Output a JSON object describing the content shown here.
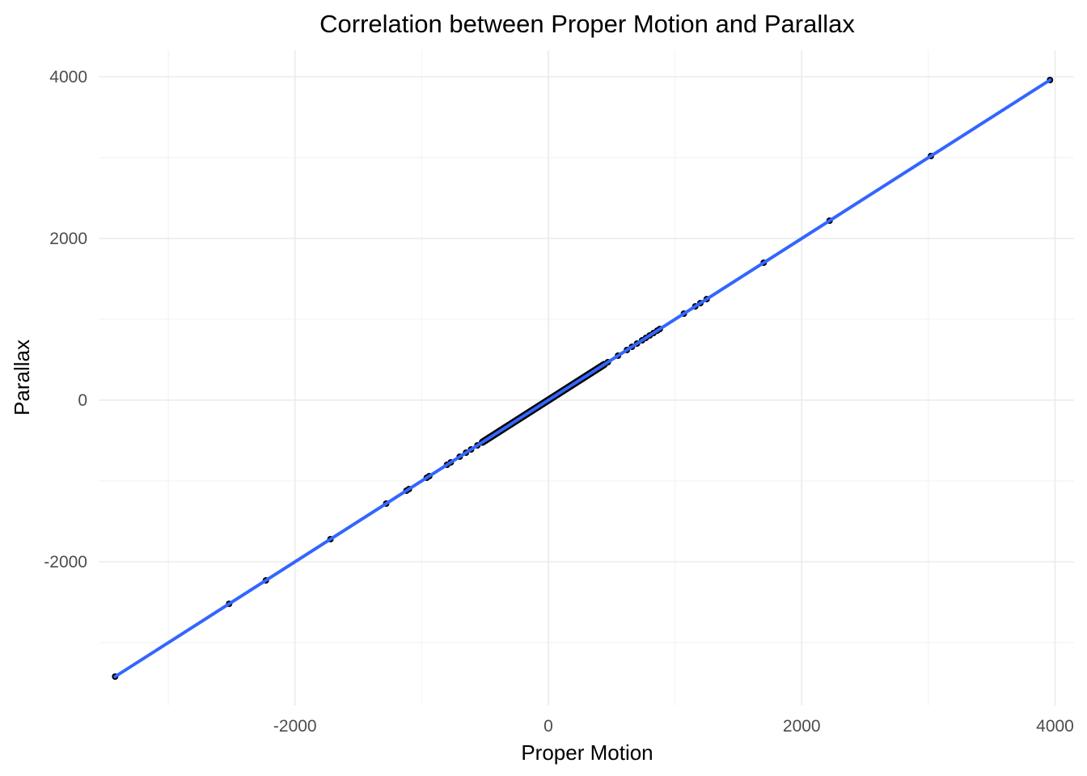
{
  "chart_data": {
    "type": "scatter",
    "title": "Correlation between Proper Motion and Parallax",
    "xlabel": "Proper Motion",
    "ylabel": "Parallax",
    "xlim": [
      -3550,
      4150
    ],
    "ylim": [
      -3780,
      4330
    ],
    "x_ticks": [
      -2000,
      0,
      2000,
      4000
    ],
    "y_ticks": [
      -2000,
      0,
      2000,
      4000
    ],
    "x_minor_ticks": [
      -3000,
      -1000,
      1000,
      3000
    ],
    "y_minor_ticks": [
      -3000,
      -1000,
      1000,
      3000
    ],
    "grid": true,
    "legend": "none",
    "colors": {
      "points": "#000000",
      "fit_line": "#3366ff"
    },
    "series": [
      {
        "values": [
          {
            "x": -3420,
            "y": -3420
          },
          {
            "x": -2520,
            "y": -2520
          },
          {
            "x": -2230,
            "y": -2230
          },
          {
            "x": -1720,
            "y": -1720
          },
          {
            "x": -1280,
            "y": -1280
          },
          {
            "x": -1120,
            "y": -1120
          },
          {
            "x": -1100,
            "y": -1100
          },
          {
            "x": -960,
            "y": -960
          },
          {
            "x": -940,
            "y": -940
          },
          {
            "x": -800,
            "y": -800
          },
          {
            "x": -770,
            "y": -770
          },
          {
            "x": -700,
            "y": -700
          },
          {
            "x": -650,
            "y": -650
          },
          {
            "x": -610,
            "y": -610
          },
          {
            "x": -560,
            "y": -560
          },
          {
            "x": -520,
            "y": -520
          },
          {
            "x": -480,
            "y": -480
          },
          {
            "x": -440,
            "y": -440
          },
          {
            "x": -400,
            "y": -400
          },
          {
            "x": -360,
            "y": -360
          },
          {
            "x": -320,
            "y": -320
          },
          {
            "x": -280,
            "y": -280
          },
          {
            "x": -240,
            "y": -240
          },
          {
            "x": -200,
            "y": -200
          },
          {
            "x": -160,
            "y": -160
          },
          {
            "x": -120,
            "y": -120
          },
          {
            "x": -80,
            "y": -80
          },
          {
            "x": -40,
            "y": -40
          },
          {
            "x": 0,
            "y": 0
          },
          {
            "x": 40,
            "y": 40
          },
          {
            "x": 80,
            "y": 80
          },
          {
            "x": 120,
            "y": 120
          },
          {
            "x": 160,
            "y": 160
          },
          {
            "x": 200,
            "y": 200
          },
          {
            "x": 240,
            "y": 240
          },
          {
            "x": 280,
            "y": 280
          },
          {
            "x": 320,
            "y": 320
          },
          {
            "x": 360,
            "y": 360
          },
          {
            "x": 400,
            "y": 400
          },
          {
            "x": 440,
            "y": 440
          },
          {
            "x": 470,
            "y": 470
          },
          {
            "x": 550,
            "y": 550
          },
          {
            "x": 620,
            "y": 620
          },
          {
            "x": 660,
            "y": 660
          },
          {
            "x": 700,
            "y": 700
          },
          {
            "x": 740,
            "y": 740
          },
          {
            "x": 770,
            "y": 770
          },
          {
            "x": 800,
            "y": 800
          },
          {
            "x": 830,
            "y": 830
          },
          {
            "x": 860,
            "y": 860
          },
          {
            "x": 880,
            "y": 880
          },
          {
            "x": 1070,
            "y": 1070
          },
          {
            "x": 1160,
            "y": 1160
          },
          {
            "x": 1200,
            "y": 1200
          },
          {
            "x": 1250,
            "y": 1250
          },
          {
            "x": 1700,
            "y": 1700
          },
          {
            "x": 2220,
            "y": 2220
          },
          {
            "x": 3020,
            "y": 3020
          },
          {
            "x": 3960,
            "y": 3960
          }
        ]
      }
    ],
    "trend_line": {
      "type": "linear",
      "from": {
        "x": -3420,
        "y": -3420
      },
      "to": {
        "x": 3960,
        "y": 3960
      }
    }
  }
}
